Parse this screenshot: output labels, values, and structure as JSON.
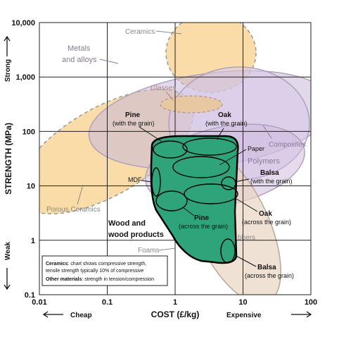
{
  "chart_data": {
    "type": "bubble-map",
    "xlabel": "COST (£/kg)",
    "ylabel": "STRENGTH (MPa)",
    "x_scale": "log",
    "y_scale": "log",
    "xlim": [
      0.01,
      100
    ],
    "ylim": [
      0.1,
      10000
    ],
    "x_ticks": [
      {
        "value": 0.01,
        "label": "0.01"
      },
      {
        "value": 0.1,
        "label": "0.1"
      },
      {
        "value": 1,
        "label": "1"
      },
      {
        "value": 10,
        "label": "10"
      },
      {
        "value": 100,
        "label": "100"
      }
    ],
    "y_ticks": [
      {
        "value": 10000,
        "label": "10,000"
      },
      {
        "value": 1000,
        "label": "1,000"
      },
      {
        "value": 100,
        "label": "100"
      },
      {
        "value": 10,
        "label": "10"
      },
      {
        "value": 1,
        "label": "1"
      },
      {
        "value": 0.1,
        "label": "0.1"
      }
    ],
    "grid": true,
    "x_side_labels": {
      "low": "Cheap",
      "high": "Expensive"
    },
    "y_side_labels": {
      "low": "Weak",
      "high": "Strong"
    },
    "colors": {
      "ceramics": "#f9dca8",
      "ceramics_edge": "#9a9a9a",
      "metals": "#c9b8d8",
      "metals_edge": "#a899b8",
      "composites": "#d8c8e8",
      "rubbers": "#e8d4c0",
      "wood": "#2fa37a",
      "wood_dark": "#000000"
    },
    "regions": [
      {
        "name": "Ceramics",
        "x_range": [
          0.5,
          10
        ],
        "y_range": [
          250,
          10000
        ],
        "style": "dashed"
      },
      {
        "name": "Porous Ceramics",
        "x_range": [
          0.01,
          2
        ],
        "y_range": [
          3,
          200
        ],
        "style": "dashed"
      },
      {
        "name": "Metals and alloys",
        "x_range": [
          0.15,
          100
        ],
        "y_range": [
          15,
          2000
        ]
      },
      {
        "name": "Glasses",
        "x_range": [
          0.5,
          4
        ],
        "y_range": [
          50,
          120
        ],
        "style": "dashed"
      },
      {
        "name": "Composites",
        "x_range": [
          2,
          100
        ],
        "y_range": [
          5,
          2000
        ]
      },
      {
        "name": "Polymers",
        "x_range": [
          0.5,
          40
        ],
        "y_range": [
          2,
          250
        ]
      },
      {
        "name": "Rubbers",
        "x_range": [
          0.8,
          20
        ],
        "y_range": [
          0.5,
          40
        ]
      },
      {
        "name": "Foams",
        "x_range": [
          1.5,
          70
        ],
        "y_range": [
          0.1,
          20
        ]
      },
      {
        "name": "Wood and wood products",
        "x_range": [
          0.4,
          9
        ],
        "y_range": [
          0.6,
          100
        ]
      }
    ],
    "wood_items": [
      {
        "name": "Pine (with the grain)",
        "x": 0.6,
        "y": 70
      },
      {
        "name": "Oak (with the grain)",
        "x": 3,
        "y": 70
      },
      {
        "name": "Paper",
        "x": 5,
        "y": 30
      },
      {
        "name": "Balsa (with the grain)",
        "x": 7,
        "y": 12
      },
      {
        "name": "MDF",
        "x": 0.5,
        "y": 10
      },
      {
        "name": "Pine (across the grain)",
        "x": 0.8,
        "y": 5
      },
      {
        "name": "Oak (across the grain)",
        "x": 5,
        "y": 6
      },
      {
        "name": "Balsa (across the grain)",
        "x": 7,
        "y": 0.9
      }
    ]
  },
  "labels": {
    "ceramics": "Ceramics",
    "metals_line1": "Metals",
    "metals_line2": "and alloys",
    "glasses": "Glasses",
    "porous_ceramics": "Porous Ceramics",
    "composites": "Composites",
    "polymers": "Polymers",
    "rubbers": "bbers",
    "foams": "Foams",
    "pine_with": "Pine",
    "pine_with_sub": "(with the grain)",
    "oak_with": "Oak",
    "oak_with_sub": "(with the grain)",
    "paper": "Paper",
    "balsa_with": "Balsa",
    "balsa_with_sub": "(with the grain)",
    "mdf": "MDF",
    "pine_across": "Pine",
    "pine_across_sub": "(across the grain)",
    "oak_across": "Oak",
    "oak_across_sub": "(across the grain)",
    "balsa_across": "Balsa",
    "balsa_across_sub": "(across the grain)",
    "wood_line1": "Wood and",
    "wood_line2": "wood products"
  },
  "note": {
    "line1_bold": "Ceramics",
    "line1_rest": ": chart shows compressive strength,",
    "line2": "tensile strength typically 10% of compressive",
    "line3_bold": "Other materials",
    "line3_rest": ": strength in tension/compression"
  }
}
